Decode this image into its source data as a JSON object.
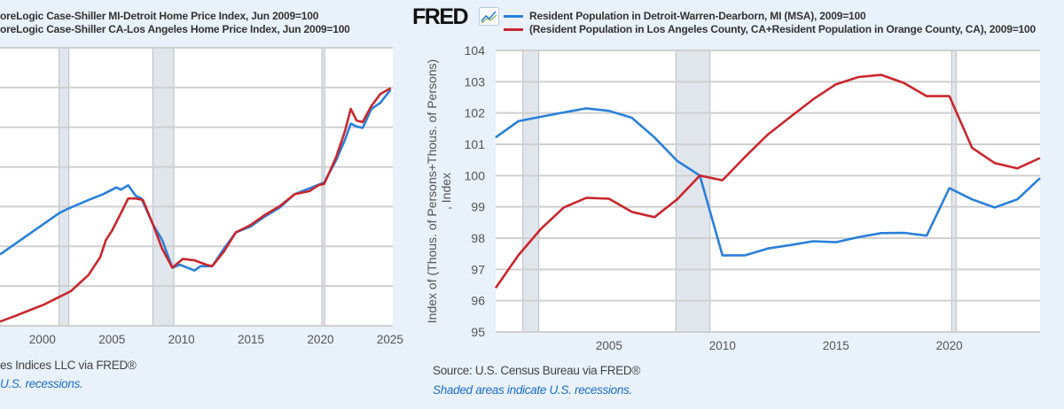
{
  "left_panel": {
    "legend": [
      {
        "label": "oreLogic Case-Shiller MI-Detroit Home Price Index, Jun 2009=100",
        "color": "#2a7fd9"
      },
      {
        "label": "oreLogic Case-Shiller CA-Los Angeles Home Price Index, Jun 2009=100",
        "color": "#c8272d"
      }
    ],
    "source": "es Indices LLC via FRED®",
    "note": "U.S. recessions."
  },
  "right_panel": {
    "logo": "FRED",
    "legend": [
      {
        "label": "Resident Population in Detroit-Warren-Dearborn, MI (MSA), 2009=100",
        "color": "#2a7fd9"
      },
      {
        "label": "(Resident Population in Los Angeles County, CA+Resident Population in Orange County, CA), 2009=100",
        "color": "#c8272d"
      }
    ],
    "ylabel": "Index of (Thous. of Persons+Thous. of Persons) , Index",
    "source": "Source: U.S. Census Bureau via FRED®",
    "note": "Shaded areas indicate U.S. recessions."
  },
  "chart_data": [
    {
      "type": "line",
      "title": "",
      "xlabel": "",
      "ylabel": "",
      "xlim": [
        1996.95,
        2025.2
      ],
      "ylim": [
        40,
        320
      ],
      "ystep": 40,
      "xticks": [
        2000,
        2005,
        2010,
        2015,
        2020,
        2025
      ],
      "recessions": [
        [
          2001.2,
          2001.9
        ],
        [
          2007.95,
          2009.45
        ],
        [
          2020.1,
          2020.3
        ]
      ],
      "grid": true,
      "series": [
        {
          "name": "Detroit Home Price Index",
          "color": "#2a7fd9",
          "x": [
            1996.95,
            1999.07,
            2001.19,
            2001.82,
            2003.31,
            2004.37,
            2005.32,
            2005.64,
            2006.17,
            2006.7,
            2007.12,
            2007.97,
            2008.61,
            2009.35,
            2009.88,
            2010.94,
            2011.37,
            2012.21,
            2013.06,
            2013.91,
            2014.97,
            2016.03,
            2017.09,
            2018.15,
            2019.21,
            2020.27,
            2021.12,
            2021.76,
            2022.18,
            2022.6,
            2023.03,
            2023.66,
            2024.3,
            2025.04
          ],
          "y": [
            111.9,
            132.6,
            153.3,
            157.8,
            166.7,
            172.6,
            179.4,
            177.1,
            181.5,
            171.1,
            168.2,
            141.5,
            126.7,
            98.5,
            101.5,
            95.6,
            100,
            100,
            117.8,
            134.1,
            140,
            150.4,
            159.3,
            172.6,
            178.5,
            184.4,
            206.7,
            227.4,
            243.7,
            240.7,
            239.3,
            258.5,
            264.5,
            277.8
          ]
        },
        {
          "name": "Los Angeles Home Price Index",
          "color": "#c8272d",
          "x": [
            1996.95,
            1998.0,
            1999.07,
            2000.13,
            2001.19,
            2002.04,
            2003.31,
            2004.15,
            2004.58,
            2005.0,
            2005.64,
            2006.17,
            2006.7,
            2007.23,
            2007.97,
            2008.61,
            2009.35,
            2010.1,
            2010.94,
            2011.79,
            2012.21,
            2013.06,
            2013.91,
            2014.97,
            2016.03,
            2017.09,
            2018.15,
            2019.21,
            2019.85,
            2020.27,
            2021.12,
            2021.76,
            2022.18,
            2022.6,
            2023.03,
            2023.66,
            2024.3,
            2025.04
          ],
          "y": [
            44.3,
            49.6,
            55.6,
            61.5,
            68.9,
            74.8,
            91.1,
            108.9,
            126.7,
            135.6,
            153.3,
            168.2,
            168.2,
            166.7,
            141.5,
            117.8,
            98.5,
            107.4,
            105.9,
            101.5,
            100,
            114.8,
            134.1,
            141.5,
            151.9,
            160.7,
            172.6,
            175.6,
            181.5,
            183,
            209.6,
            236.3,
            258.5,
            246.7,
            245.2,
            261.5,
            273.4,
            279.3
          ]
        }
      ]
    },
    {
      "type": "line",
      "title": "",
      "xlabel": "",
      "ylabel": "Index of (Thous. of Persons+Thous. of Persons) , Index",
      "xlim": [
        2000,
        2024
      ],
      "ylim": [
        95,
        104
      ],
      "ystep": 1,
      "yticks": [
        95,
        96,
        97,
        98,
        99,
        100,
        101,
        102,
        103,
        104
      ],
      "xticks": [
        2005,
        2010,
        2015,
        2020
      ],
      "recessions": [
        [
          2001.2,
          2001.9
        ],
        [
          2007.95,
          2009.45
        ],
        [
          2020.1,
          2020.3
        ]
      ],
      "grid": true,
      "series": [
        {
          "name": "Resident Population in Detroit-Warren-Dearborn, MI (MSA), 2009=100",
          "color": "#2a7fd9",
          "x": [
            2000,
            2001,
            2002,
            2003,
            2004,
            2005,
            2006,
            2007,
            2008,
            2009,
            2010,
            2011,
            2012,
            2013,
            2014,
            2015,
            2016,
            2017,
            2018,
            2019,
            2020,
            2021,
            2022,
            2023,
            2024
          ],
          "y": [
            101.22,
            101.74,
            101.88,
            102.02,
            102.15,
            102.07,
            101.85,
            101.22,
            100.47,
            100.0,
            97.45,
            97.45,
            97.67,
            97.78,
            97.9,
            97.87,
            98.03,
            98.16,
            98.17,
            98.08,
            99.6,
            99.24,
            98.98,
            99.24,
            99.92
          ]
        },
        {
          "name": "(Resident Population in Los Angeles County, CA+Resident Population in Orange County, CA), 2009=100",
          "color": "#c8272d",
          "x": [
            2000,
            2001,
            2002,
            2003,
            2004,
            2005,
            2006,
            2007,
            2008,
            2009,
            2010,
            2011,
            2012,
            2013,
            2014,
            2015,
            2016,
            2017,
            2018,
            2019,
            2020,
            2021,
            2022,
            2023,
            2024
          ],
          "y": [
            96.41,
            97.45,
            98.3,
            98.98,
            99.29,
            99.26,
            98.84,
            98.67,
            99.24,
            100.0,
            99.85,
            100.6,
            101.31,
            101.88,
            102.44,
            102.92,
            103.15,
            103.22,
            102.96,
            102.54,
            102.54,
            100.89,
            100.4,
            100.23,
            100.56
          ]
        }
      ]
    }
  ]
}
